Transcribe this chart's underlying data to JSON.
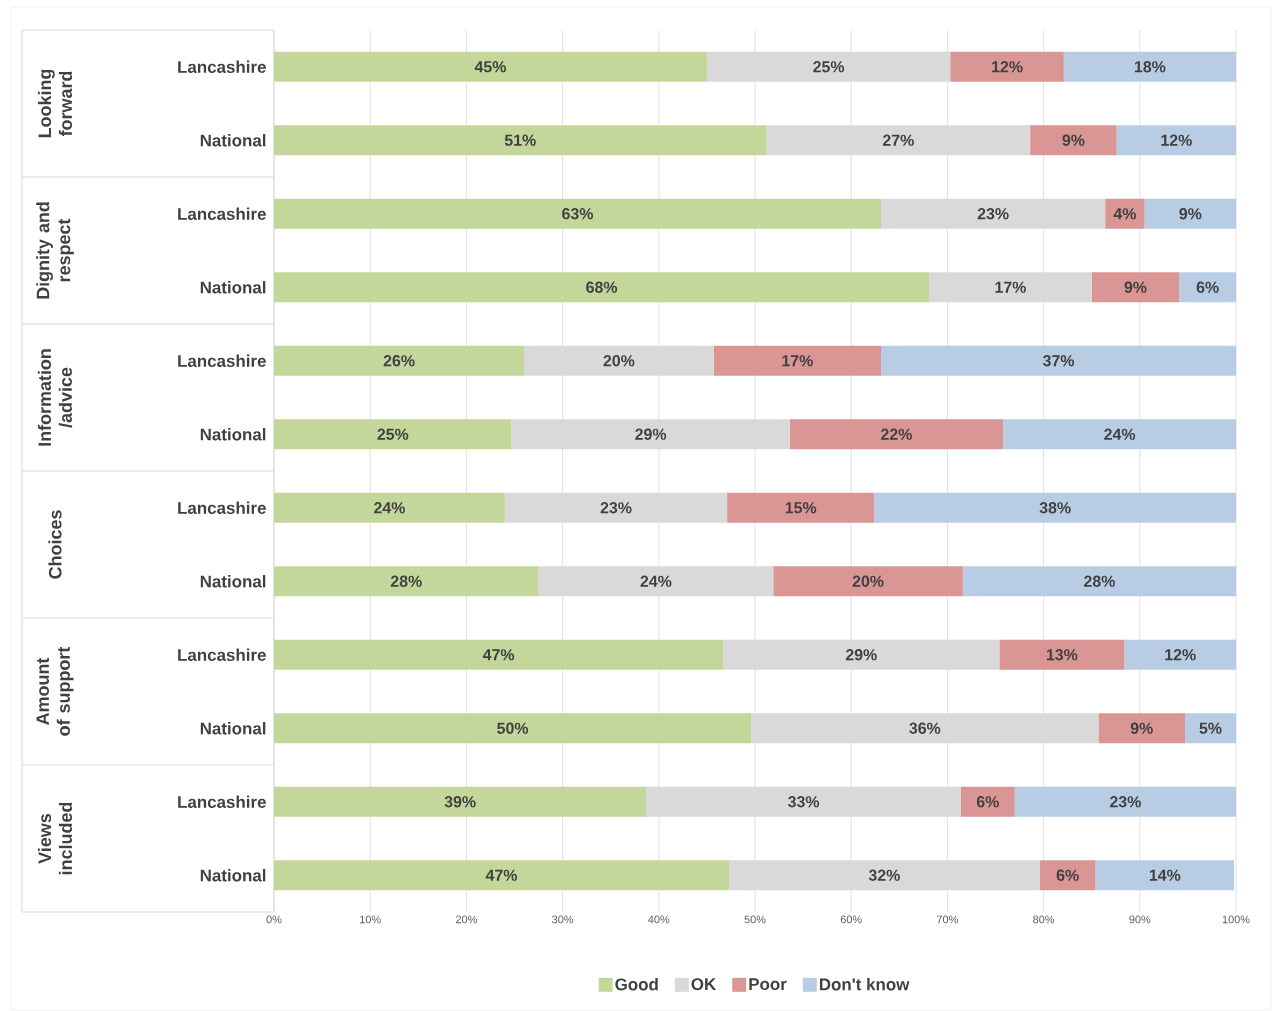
{
  "chart_data": {
    "type": "bar",
    "orientation": "horizontal",
    "stacked": true,
    "categories": [
      "Lancashire",
      "National",
      "Lancashire",
      "National",
      "Lancashire",
      "National",
      "Lancashire",
      "National",
      "Lancashire",
      "National",
      "Lancashire",
      "National"
    ],
    "annotations": [
      "Looking forward",
      "Dignity and respect",
      "Information /advice",
      "Choices",
      "Amount of support",
      "Views included"
    ],
    "series": [
      {
        "name": "Good",
        "color": "#c4d79b",
        "values": [
          45.0,
          51.2,
          63.1,
          68.1,
          26.0,
          24.7,
          24.0,
          27.5,
          46.7,
          49.6,
          38.7,
          47.3
        ],
        "value_labels": [
          "45%",
          "51%",
          "63%",
          "68%",
          "26%",
          "25%",
          "24%",
          "28%",
          "47%",
          "50%",
          "39%",
          "47%"
        ]
      },
      {
        "name": "OK",
        "color": "#d9d9d9",
        "values": [
          25.3,
          27.4,
          23.3,
          16.9,
          19.7,
          28.9,
          23.1,
          24.4,
          28.7,
          36.1,
          32.7,
          32.3
        ],
        "value_labels": [
          "25%",
          "27%",
          "23%",
          "17%",
          "20%",
          "29%",
          "23%",
          "24%",
          "29%",
          "36%",
          "33%",
          "32%"
        ]
      },
      {
        "name": "Poor",
        "color": "#da9694",
        "values": [
          11.8,
          9.0,
          4.1,
          9.1,
          17.4,
          22.2,
          15.3,
          19.7,
          13.0,
          9.0,
          5.6,
          5.8
        ],
        "value_labels": [
          "12%",
          "9%",
          "4%",
          "9%",
          "17%",
          "22%",
          "15%",
          "20%",
          "13%",
          "9%",
          "6%",
          "6%"
        ]
      },
      {
        "name": "Don't know",
        "color": "#b8cce4",
        "values": [
          17.9,
          12.4,
          9.5,
          5.9,
          36.9,
          24.2,
          37.6,
          28.4,
          11.6,
          5.3,
          23.0,
          14.4
        ],
        "value_labels": [
          "18%",
          "12%",
          "9%",
          "6%",
          "37%",
          "24%",
          "38%",
          "28%",
          "12%",
          "5%",
          "23%",
          "14%"
        ]
      }
    ],
    "xlim": [
      0,
      100
    ],
    "xticks": [
      {
        "value": 0,
        "label": "0%"
      },
      {
        "value": 10,
        "label": "10%"
      },
      {
        "value": 20,
        "label": "20%"
      },
      {
        "value": 30,
        "label": "30%"
      },
      {
        "value": 40,
        "label": "40%"
      },
      {
        "value": 50,
        "label": "50%"
      },
      {
        "value": 60,
        "label": "60%"
      },
      {
        "value": 70,
        "label": "70%"
      },
      {
        "value": 80,
        "label": "80%"
      },
      {
        "value": 90,
        "label": "90%"
      },
      {
        "value": 100,
        "label": "100%"
      }
    ],
    "grid": "x",
    "legend": "bottom"
  }
}
